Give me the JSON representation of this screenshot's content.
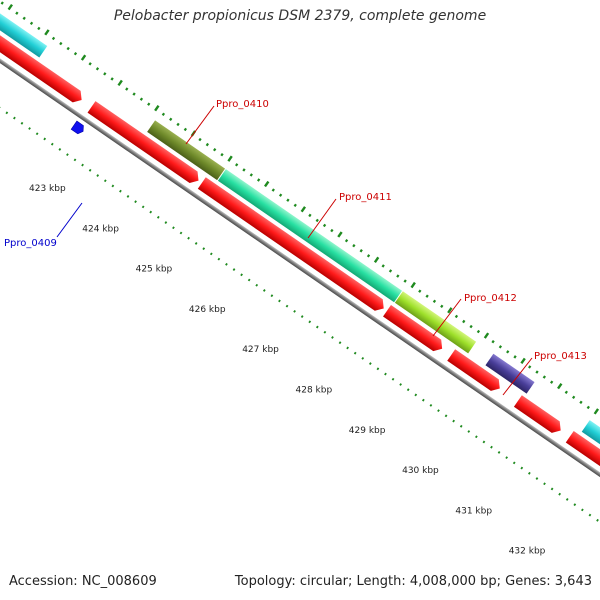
{
  "title": "Pelobacter propionicus DSM 2379, complete genome",
  "footer": {
    "accession": "Accession: NC_008609",
    "info": "Topology: circular; Length: 4,008,000 bp; Genes: 3,643"
  },
  "scale_labels": [
    "423 kbp",
    "424 kbp",
    "425 kbp",
    "426 kbp",
    "427 kbp",
    "428 kbp",
    "429 kbp",
    "430 kbp",
    "431 kbp",
    "432 kbp"
  ],
  "gene_labels": [
    {
      "id": "Ppro_0409",
      "color": "#0000cc"
    },
    {
      "id": "Ppro_0410",
      "color": "#cc0000"
    },
    {
      "id": "Ppro_0411",
      "color": "#cc0000"
    },
    {
      "id": "Ppro_0412",
      "color": "#cc0000"
    },
    {
      "id": "Ppro_0413",
      "color": "#cc0000"
    }
  ],
  "colors": {
    "cds": "#ff1a1a",
    "backbone": "#7a7a7a",
    "tick": "#1f8a1f",
    "cyan": "#26d0d6",
    "olive": "#6f8a2a",
    "spring": "#24e0a0",
    "lime": "#9ee02a",
    "navy": "#4a3f9a",
    "blue": "#1010ee"
  }
}
